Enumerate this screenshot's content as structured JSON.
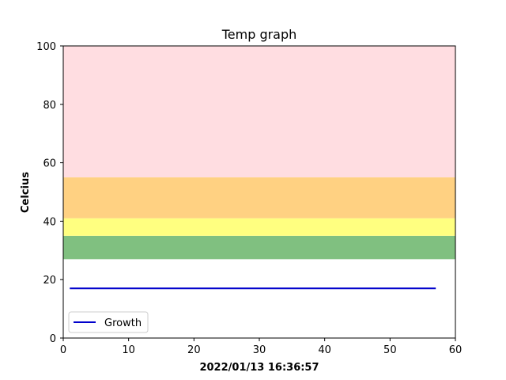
{
  "chart_data": {
    "type": "line",
    "title": "Temp graph",
    "xlabel": "2022/01/13 16:36:57",
    "ylabel": "Celcius",
    "xlim": [
      0,
      60
    ],
    "ylim": [
      0,
      100
    ],
    "x_ticks": [
      0,
      10,
      20,
      30,
      40,
      50,
      60
    ],
    "y_ticks": [
      0,
      20,
      40,
      60,
      80,
      100
    ],
    "grid": false,
    "legend_position": "lower-left",
    "series": [
      {
        "name": "Growth",
        "color": "#0000cc",
        "x": [
          1,
          57
        ],
        "y": [
          17,
          17
        ]
      }
    ],
    "bands": [
      {
        "from": 27,
        "to": 35,
        "color": "#80c080"
      },
      {
        "from": 35,
        "to": 41,
        "color": "#ffff80"
      },
      {
        "from": 41,
        "to": 55,
        "color": "#ffd182"
      },
      {
        "from": 55,
        "to": 100,
        "color": "#ffdde1"
      }
    ]
  }
}
